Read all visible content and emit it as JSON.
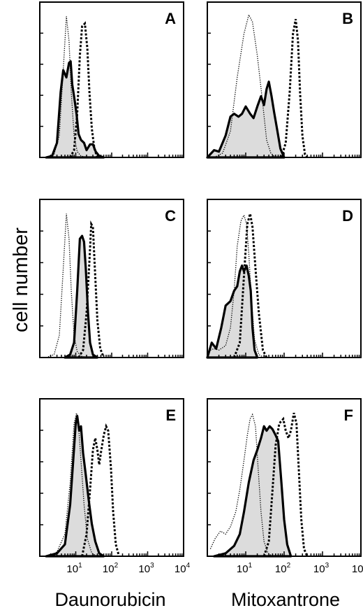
{
  "figure": {
    "ylabel": "cell number",
    "xlabels": [
      "Daunorubicin",
      "Mitoxantrone"
    ],
    "tick_labels": [
      {
        "base": "10",
        "exp": "1"
      },
      {
        "base": "10",
        "exp": "2"
      },
      {
        "base": "10",
        "exp": "3"
      },
      {
        "base": "10",
        "exp": "4"
      }
    ]
  },
  "chart_data": [
    {
      "type": "area",
      "panel": "A",
      "column": "Daunorubicin",
      "x_scale": "log",
      "xlim": [
        1,
        10000
      ],
      "ylim": [
        0,
        1
      ],
      "series": [
        {
          "style": "dotted",
          "points": [
            [
              1.5,
              0
            ],
            [
              2.5,
              0.02
            ],
            [
              3.5,
              0.15
            ],
            [
              4.5,
              0.6
            ],
            [
              5.5,
              0.97
            ],
            [
              6.5,
              0.8
            ],
            [
              7.5,
              0.45
            ],
            [
              9,
              0.15
            ],
            [
              11,
              0.04
            ],
            [
              14,
              0.01
            ],
            [
              20,
              0
            ]
          ]
        },
        {
          "style": "filled",
          "points": [
            [
              1.5,
              0
            ],
            [
              2.2,
              0.01
            ],
            [
              3,
              0.1
            ],
            [
              3.8,
              0.45
            ],
            [
              4.5,
              0.6
            ],
            [
              5.5,
              0.55
            ],
            [
              6.5,
              0.65
            ],
            [
              7.2,
              0.66
            ],
            [
              8,
              0.5
            ],
            [
              9,
              0.42
            ],
            [
              10.5,
              0.3
            ],
            [
              12,
              0.16
            ],
            [
              14,
              0.12
            ],
            [
              17,
              0.1
            ],
            [
              20,
              0.05
            ],
            [
              25,
              0.09
            ],
            [
              30,
              0.09
            ],
            [
              36,
              0.04
            ],
            [
              45,
              0.01
            ],
            [
              60,
              0
            ]
          ]
        },
        {
          "style": "dashed",
          "points": [
            [
              7,
              0
            ],
            [
              9,
              0.05
            ],
            [
              11,
              0.3
            ],
            [
              13,
              0.7
            ],
            [
              15,
              0.9
            ],
            [
              18,
              0.92
            ],
            [
              21,
              0.75
            ],
            [
              24,
              0.45
            ],
            [
              28,
              0.2
            ],
            [
              33,
              0.06
            ],
            [
              40,
              0
            ]
          ]
        }
      ]
    },
    {
      "type": "area",
      "panel": "B",
      "column": "Mitoxantrone",
      "x_scale": "log",
      "xlim": [
        1,
        10000
      ],
      "ylim": [
        0,
        1
      ],
      "series": [
        {
          "style": "dotted",
          "points": [
            [
              1.5,
              0
            ],
            [
              2.5,
              0.03
            ],
            [
              4,
              0.18
            ],
            [
              6,
              0.55
            ],
            [
              9,
              0.85
            ],
            [
              12,
              0.98
            ],
            [
              15,
              0.93
            ],
            [
              20,
              0.7
            ],
            [
              27,
              0.4
            ],
            [
              35,
              0.12
            ],
            [
              45,
              0.03
            ],
            [
              60,
              0
            ]
          ]
        },
        {
          "style": "filled",
          "points": [
            [
              1,
              0
            ],
            [
              1.5,
              0.05
            ],
            [
              2,
              0.04
            ],
            [
              3,
              0.15
            ],
            [
              4,
              0.28
            ],
            [
              5,
              0.3
            ],
            [
              6.5,
              0.28
            ],
            [
              8,
              0.3
            ],
            [
              10,
              0.35
            ],
            [
              13,
              0.3
            ],
            [
              16,
              0.27
            ],
            [
              20,
              0.35
            ],
            [
              25,
              0.42
            ],
            [
              30,
              0.36
            ],
            [
              35,
              0.47
            ],
            [
              40,
              0.52
            ],
            [
              47,
              0.42
            ],
            [
              55,
              0.31
            ],
            [
              65,
              0.2
            ],
            [
              80,
              0.06
            ],
            [
              100,
              0
            ]
          ]
        },
        {
          "style": "dashed",
          "points": [
            [
              85,
              0
            ],
            [
              110,
              0.1
            ],
            [
              140,
              0.45
            ],
            [
              170,
              0.85
            ],
            [
              200,
              0.95
            ],
            [
              230,
              0.8
            ],
            [
              260,
              0.45
            ],
            [
              300,
              0.15
            ],
            [
              350,
              0.02
            ],
            [
              400,
              0
            ]
          ]
        }
      ]
    },
    {
      "type": "area",
      "panel": "C",
      "column": "Daunorubicin",
      "x_scale": "log",
      "xlim": [
        1,
        10000
      ],
      "ylim": [
        0,
        1
      ],
      "series": [
        {
          "style": "dotted",
          "points": [
            [
              1.5,
              0
            ],
            [
              2.5,
              0.02
            ],
            [
              3.5,
              0.15
            ],
            [
              4.5,
              0.6
            ],
            [
              5.5,
              0.97
            ],
            [
              6.5,
              0.8
            ],
            [
              7.5,
              0.45
            ],
            [
              9,
              0.15
            ],
            [
              11,
              0.04
            ],
            [
              14,
              0.01
            ],
            [
              20,
              0
            ]
          ]
        },
        {
          "style": "filled",
          "points": [
            [
              5,
              0
            ],
            [
              7,
              0.02
            ],
            [
              9,
              0.1
            ],
            [
              11,
              0.45
            ],
            [
              13,
              0.8
            ],
            [
              15,
              0.82
            ],
            [
              17,
              0.78
            ],
            [
              19,
              0.6
            ],
            [
              22,
              0.3
            ],
            [
              25,
              0.1
            ],
            [
              30,
              0.02
            ],
            [
              40,
              0
            ]
          ]
        },
        {
          "style": "dashed",
          "points": [
            [
              12,
              0
            ],
            [
              16,
              0.05
            ],
            [
              20,
              0.3
            ],
            [
              24,
              0.65
            ],
            [
              27,
              0.9
            ],
            [
              30,
              0.88
            ],
            [
              34,
              0.6
            ],
            [
              40,
              0.25
            ],
            [
              48,
              0.06
            ],
            [
              60,
              0
            ]
          ]
        }
      ]
    },
    {
      "type": "area",
      "panel": "D",
      "column": "Mitoxantrone",
      "x_scale": "log",
      "xlim": [
        1,
        10000
      ],
      "ylim": [
        0,
        1
      ],
      "series": [
        {
          "style": "dotted",
          "points": [
            [
              1.2,
              0.05
            ],
            [
              1.5,
              0.06
            ],
            [
              2,
              0.05
            ],
            [
              3,
              0.08
            ],
            [
              4,
              0.2
            ],
            [
              5,
              0.45
            ],
            [
              6,
              0.75
            ],
            [
              7.5,
              0.92
            ],
            [
              9,
              0.96
            ],
            [
              10.5,
              0.9
            ],
            [
              12,
              0.7
            ],
            [
              14,
              0.4
            ],
            [
              17,
              0.12
            ],
            [
              22,
              0.02
            ],
            [
              30,
              0
            ]
          ]
        },
        {
          "style": "filled",
          "points": [
            [
              1,
              0
            ],
            [
              1.3,
              0.1
            ],
            [
              1.7,
              0.06
            ],
            [
              2.3,
              0.2
            ],
            [
              3,
              0.35
            ],
            [
              4,
              0.38
            ],
            [
              5,
              0.45
            ],
            [
              6,
              0.48
            ],
            [
              7,
              0.58
            ],
            [
              8,
              0.62
            ],
            [
              9,
              0.58
            ],
            [
              10.5,
              0.62
            ],
            [
              12,
              0.55
            ],
            [
              13.5,
              0.45
            ],
            [
              15,
              0.2
            ],
            [
              17,
              0.05
            ],
            [
              20,
              0
            ]
          ]
        },
        {
          "style": "dashed",
          "points": [
            [
              5,
              0
            ],
            [
              7,
              0.1
            ],
            [
              9,
              0.55
            ],
            [
              11,
              0.9
            ],
            [
              13,
              0.97
            ],
            [
              15,
              0.88
            ],
            [
              18,
              0.6
            ],
            [
              22,
              0.3
            ],
            [
              28,
              0.05
            ],
            [
              35,
              0
            ]
          ]
        }
      ]
    },
    {
      "type": "area",
      "panel": "E",
      "column": "Daunorubicin",
      "x_scale": "log",
      "xlim": [
        1,
        10000
      ],
      "ylim": [
        0,
        1
      ],
      "series": [
        {
          "style": "dotted",
          "points": [
            [
              2,
              0
            ],
            [
              3,
              0.03
            ],
            [
              5,
              0.15
            ],
            [
              7,
              0.5
            ],
            [
              9,
              0.9
            ],
            [
              10.5,
              0.97
            ],
            [
              12,
              0.88
            ],
            [
              14,
              0.65
            ],
            [
              17,
              0.35
            ],
            [
              21,
              0.12
            ],
            [
              28,
              0.02
            ],
            [
              40,
              0
            ]
          ]
        },
        {
          "style": "filled",
          "points": [
            [
              1.5,
              0
            ],
            [
              3,
              0.02
            ],
            [
              5,
              0.08
            ],
            [
              7,
              0.35
            ],
            [
              8.5,
              0.65
            ],
            [
              10,
              0.9
            ],
            [
              11,
              0.95
            ],
            [
              12.5,
              0.85
            ],
            [
              14,
              0.88
            ],
            [
              16,
              0.7
            ],
            [
              19,
              0.55
            ],
            [
              23,
              0.38
            ],
            [
              28,
              0.22
            ],
            [
              35,
              0.1
            ],
            [
              45,
              0.02
            ],
            [
              60,
              0
            ]
          ]
        },
        {
          "style": "dashed",
          "points": [
            [
              15,
              0
            ],
            [
              20,
              0.15
            ],
            [
              25,
              0.45
            ],
            [
              30,
              0.72
            ],
            [
              35,
              0.8
            ],
            [
              40,
              0.72
            ],
            [
              45,
              0.62
            ],
            [
              50,
              0.7
            ],
            [
              60,
              0.82
            ],
            [
              70,
              0.88
            ],
            [
              80,
              0.85
            ],
            [
              95,
              0.6
            ],
            [
              110,
              0.3
            ],
            [
              130,
              0.08
            ],
            [
              160,
              0
            ]
          ]
        }
      ]
    },
    {
      "type": "area",
      "panel": "F",
      "column": "Mitoxantrone",
      "x_scale": "log",
      "xlim": [
        1,
        10000
      ],
      "ylim": [
        0,
        1
      ],
      "series": [
        {
          "style": "dotted",
          "points": [
            [
              1.2,
              0.05
            ],
            [
              1.6,
              0.12
            ],
            [
              2.2,
              0.17
            ],
            [
              3,
              0.15
            ],
            [
              4,
              0.2
            ],
            [
              5.5,
              0.3
            ],
            [
              7,
              0.45
            ],
            [
              9,
              0.65
            ],
            [
              11,
              0.82
            ],
            [
              13,
              0.93
            ],
            [
              15,
              0.96
            ],
            [
              18,
              0.88
            ],
            [
              21,
              0.6
            ],
            [
              25,
              0.3
            ],
            [
              30,
              0.1
            ],
            [
              38,
              0.02
            ],
            [
              50,
              0
            ]
          ]
        },
        {
          "style": "filled",
          "points": [
            [
              1.5,
              0
            ],
            [
              3,
              0.02
            ],
            [
              5,
              0.07
            ],
            [
              7,
              0.15
            ],
            [
              9,
              0.3
            ],
            [
              12,
              0.5
            ],
            [
              16,
              0.65
            ],
            [
              20,
              0.72
            ],
            [
              25,
              0.8
            ],
            [
              30,
              0.88
            ],
            [
              35,
              0.85
            ],
            [
              42,
              0.88
            ],
            [
              50,
              0.86
            ],
            [
              60,
              0.82
            ],
            [
              70,
              0.78
            ],
            [
              85,
              0.5
            ],
            [
              100,
              0.25
            ],
            [
              120,
              0.08
            ],
            [
              150,
              0
            ]
          ]
        },
        {
          "style": "dashed",
          "points": [
            [
              30,
              0
            ],
            [
              40,
              0.1
            ],
            [
              50,
              0.45
            ],
            [
              60,
              0.75
            ],
            [
              75,
              0.9
            ],
            [
              95,
              0.93
            ],
            [
              110,
              0.85
            ],
            [
              130,
              0.8
            ],
            [
              150,
              0.85
            ],
            [
              180,
              0.97
            ],
            [
              210,
              0.9
            ],
            [
              240,
              0.6
            ],
            [
              280,
              0.25
            ],
            [
              330,
              0.05
            ],
            [
              400,
              0
            ]
          ]
        }
      ]
    }
  ]
}
